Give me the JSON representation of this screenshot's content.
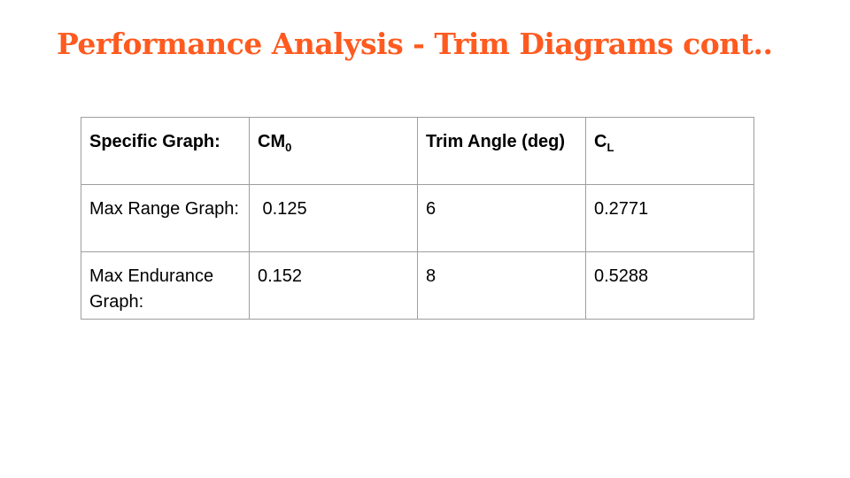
{
  "title": "Performance Analysis - Trim Diagrams cont..",
  "table": {
    "headers": [
      {
        "main": "Specific Graph:",
        "sub": ""
      },
      {
        "main": "CM",
        "sub": "0"
      },
      {
        "main": "Trim Angle (deg)",
        "sub": ""
      },
      {
        "main": "C",
        "sub": "L"
      }
    ],
    "rows": [
      [
        "Max Range Graph:",
        " 0.125",
        "6",
        "0.2771"
      ],
      [
        "Max Endurance Graph:",
        "0.152",
        "8",
        "0.5288"
      ]
    ]
  },
  "colors": {
    "title": "#ff5a1f",
    "border": "#9e9e9e"
  }
}
